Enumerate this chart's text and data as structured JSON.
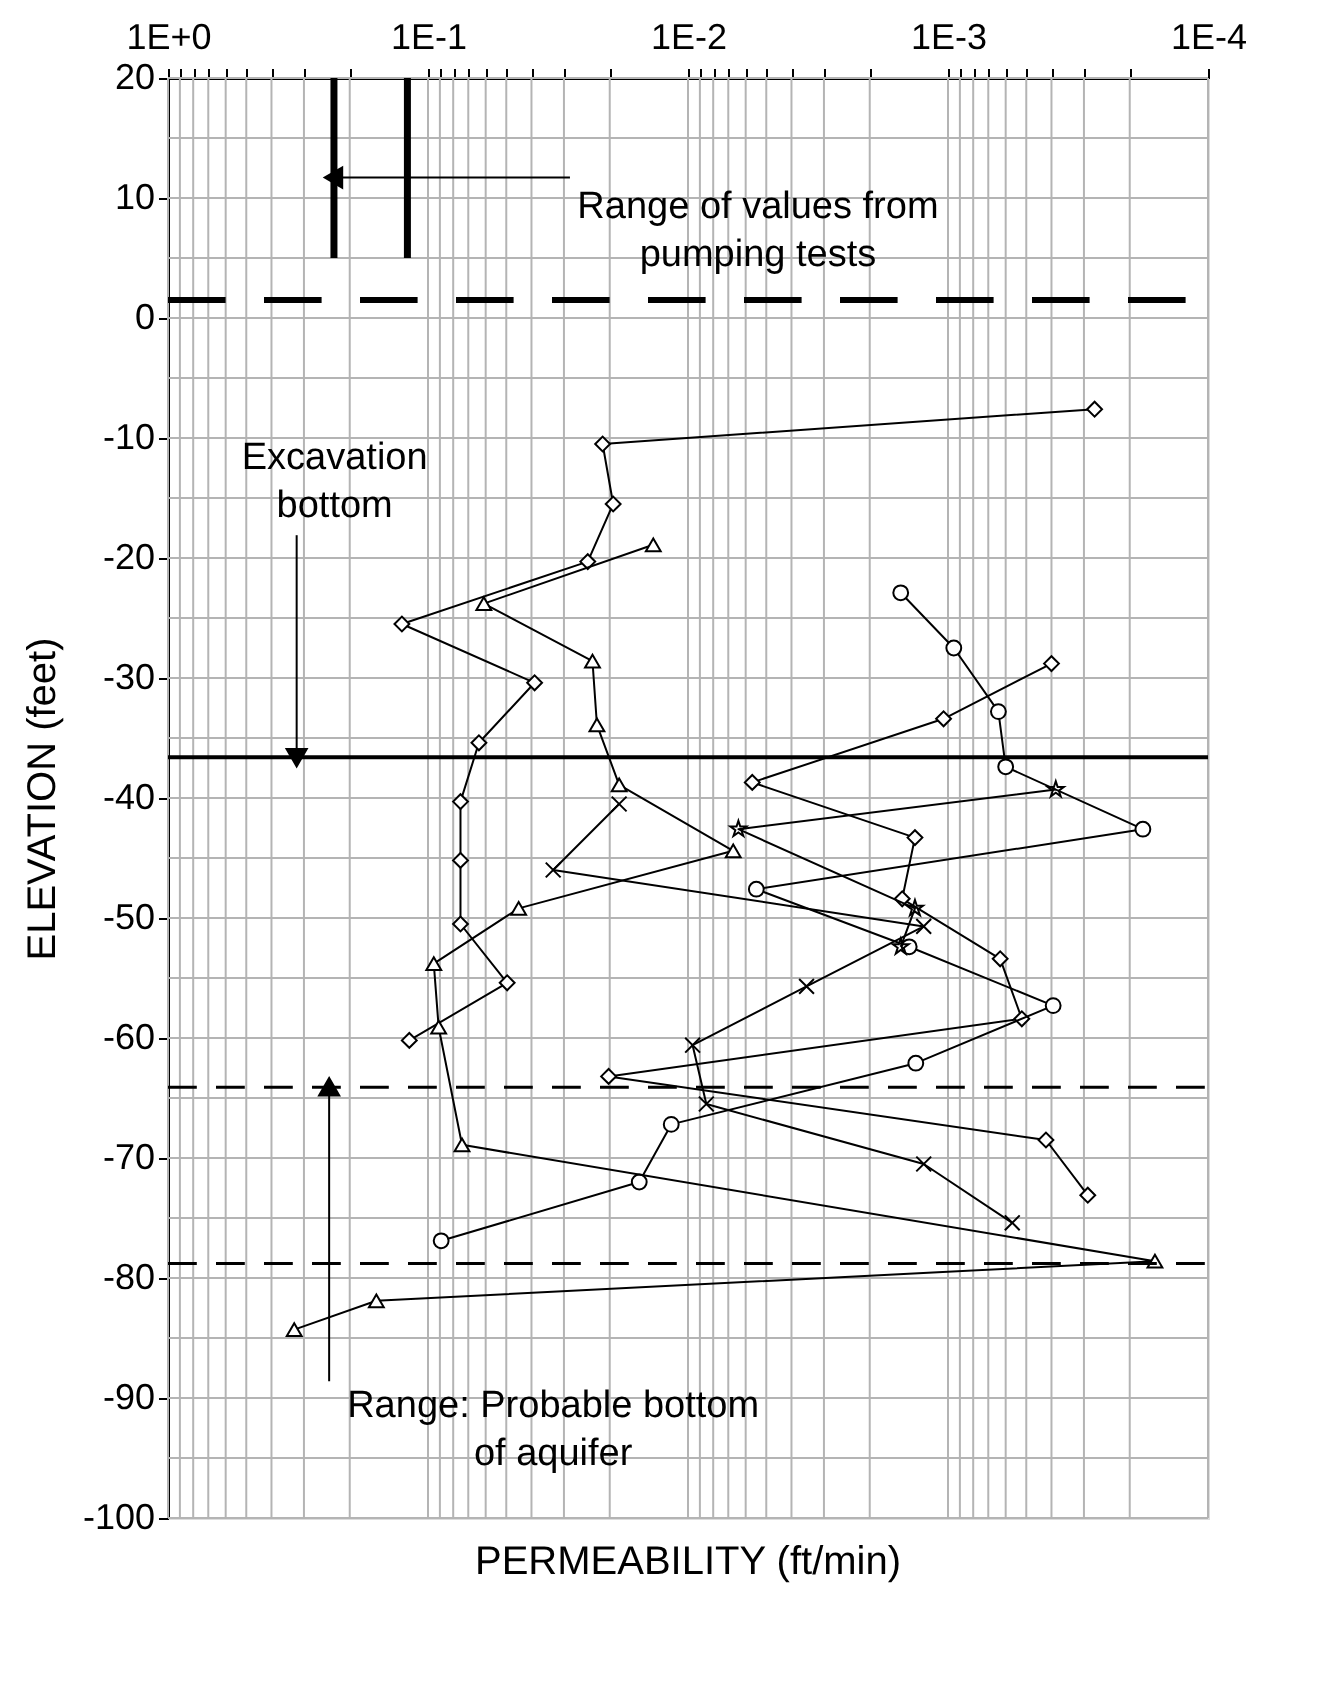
{
  "chart_data": {
    "type": "line",
    "xlabel": "PERMEABILITY (ft/min)",
    "ylabel": "ELEVATION (feet)",
    "log": "x",
    "grid": true,
    "xlim": [
      1,
      0.0001
    ],
    "ylim": [
      -100,
      20
    ],
    "xticks": [
      {
        "value": 1,
        "label": "1E+0"
      },
      {
        "value": 0.1,
        "label": "1E-1"
      },
      {
        "value": 0.01,
        "label": "1E-2"
      },
      {
        "value": 0.001,
        "label": "1E-3"
      },
      {
        "value": 0.0001,
        "label": "1E-4"
      },
      {
        "value": 0.9,
        "label": null
      },
      {
        "value": 0.8,
        "label": null
      },
      {
        "value": 0.7,
        "label": null
      },
      {
        "value": 0.6,
        "label": null
      },
      {
        "value": 0.5,
        "label": null
      },
      {
        "value": 0.4,
        "label": null
      },
      {
        "value": 0.3,
        "label": null
      },
      {
        "value": 0.2,
        "label": null
      },
      {
        "value": 0.09,
        "label": null
      },
      {
        "value": 0.08,
        "label": null
      },
      {
        "value": 0.07,
        "label": null
      },
      {
        "value": 0.06,
        "label": null
      },
      {
        "value": 0.05,
        "label": null
      },
      {
        "value": 0.04,
        "label": null
      },
      {
        "value": 0.03,
        "label": null
      },
      {
        "value": 0.02,
        "label": null
      },
      {
        "value": 0.009,
        "label": null
      },
      {
        "value": 0.008,
        "label": null
      },
      {
        "value": 0.007,
        "label": null
      },
      {
        "value": 0.006,
        "label": null
      },
      {
        "value": 0.005,
        "label": null
      },
      {
        "value": 0.004,
        "label": null
      },
      {
        "value": 0.003,
        "label": null
      },
      {
        "value": 0.002,
        "label": null
      },
      {
        "value": 0.0009,
        "label": null
      },
      {
        "value": 0.0008,
        "label": null
      },
      {
        "value": 0.0007,
        "label": null
      },
      {
        "value": 0.0006,
        "label": null
      },
      {
        "value": 0.0005,
        "label": null
      },
      {
        "value": 0.0004,
        "label": null
      },
      {
        "value": 0.0003,
        "label": null
      },
      {
        "value": 0.0002,
        "label": null
      }
    ],
    "yticks": [
      -100,
      -90,
      -80,
      -70,
      -60,
      -50,
      -40,
      -30,
      -20,
      -10,
      0,
      10,
      20,
      {
        "value": -95,
        "label": null
      },
      {
        "value": -85,
        "label": null
      },
      {
        "value": -75,
        "label": null
      },
      {
        "value": -65,
        "label": null
      },
      {
        "value": -55,
        "label": null
      },
      {
        "value": -45,
        "label": null
      },
      {
        "value": -35,
        "label": null
      },
      {
        "value": -25,
        "label": null
      },
      {
        "value": -15,
        "label": null
      },
      {
        "value": -5,
        "label": null
      },
      {
        "value": 5,
        "label": null
      },
      {
        "value": 15,
        "label": null
      }
    ],
    "series": [
      {
        "color": "#000000",
        "marker": "diamond",
        "x": [
          0.000273,
          0.0213,
          0.0194,
          0.0243,
          0.126,
          0.0389,
          0.0637,
          0.075,
          0.075,
          0.075,
          0.0496,
          0.118
        ],
        "values": [
          -7.6,
          -10.5,
          -15.5,
          -20.3,
          -25.5,
          -30.4,
          -35.4,
          -40.3,
          -45.2,
          -50.5,
          -55.4,
          -60.2
        ]
      },
      {
        "color": "#000000",
        "marker": "diamond",
        "x": [
          0.0004,
          0.00104,
          0.00566,
          0.00134,
          0.0015,
          0.00063,
          0.00052,
          0.0202,
          0.00042,
          0.00029
        ],
        "values": [
          -28.8,
          -33.4,
          -38.7,
          -43.3,
          -48.4,
          -53.4,
          -58.4,
          -63.2,
          -68.5,
          -73.1
        ]
      },
      {
        "color": "#000000",
        "marker": "circle",
        "x": [
          0.00152,
          0.00095,
          0.00064,
          0.0006,
          0.000178,
          0.00546,
          0.00141,
          0.000394,
          0.00133,
          0.0116,
          0.0154,
          0.089
        ],
        "values": [
          -22.9,
          -27.5,
          -32.8,
          -37.4,
          -42.6,
          -47.6,
          -52.4,
          -57.3,
          -62.1,
          -67.2,
          -72.0,
          -76.9
        ]
      },
      {
        "color": "#000000",
        "marker": "triangle",
        "x": [
          0.0136,
          0.061,
          0.0233,
          0.0224,
          0.0184,
          0.0067,
          0.0448,
          0.095,
          0.091,
          0.074,
          0.00016,
          0.158,
          0.327
        ],
        "values": [
          -18.9,
          -23.8,
          -28.6,
          -33.9,
          -38.9,
          -44.4,
          -49.2,
          -53.8,
          -59.1,
          -68.9,
          -78.6,
          -81.9,
          -84.3
        ]
      },
      {
        "color": "#000000",
        "marker": "cross",
        "x": [
          0.0184,
          0.033,
          0.00124,
          0.0035,
          0.0096,
          0.0085,
          0.00124,
          0.000566
        ],
        "values": [
          -40.5,
          -46.0,
          -50.7,
          -55.7,
          -60.6,
          -65.5,
          -70.5,
          -75.4
        ]
      },
      {
        "color": "#000000",
        "marker": "star",
        "x": [
          0.000385,
          0.0064,
          0.00134,
          0.00152
        ],
        "values": [
          -39.3,
          -42.6,
          -49.2,
          -52.4
        ]
      },
      {
        "color": "#000000",
        "marker": "none",
        "x": [
          0.23,
          0.23
        ],
        "values": [
          20,
          5
        ]
      },
      {
        "color": "#000000",
        "marker": "none",
        "x": [
          0.12,
          0.12
        ],
        "values": [
          20,
          5
        ]
      }
    ],
    "ref_lines": [
      {
        "axis": "y",
        "value": 1.5,
        "line_style": "dashed",
        "color": "#000000"
      },
      {
        "axis": "y",
        "value": -36.6,
        "line_style": "solid",
        "color": "#000000"
      },
      {
        "axis": "y",
        "value": -64.1,
        "line_style": "dashed",
        "color": "#000000"
      },
      {
        "axis": "y",
        "value": -78.8,
        "line_style": "dashed",
        "color": "#000000"
      }
    ],
    "annotations": [
      {
        "text": "Range of values from\npumping tests",
        "x": 0.23,
        "y": 11.7
      },
      {
        "text": "Excavation\nbottom",
        "x": 0.32,
        "y": -36.6
      },
      {
        "text": "Range: Probable bottom\nof aquifer",
        "x": 0.24,
        "y": -64.1
      }
    ]
  }
}
